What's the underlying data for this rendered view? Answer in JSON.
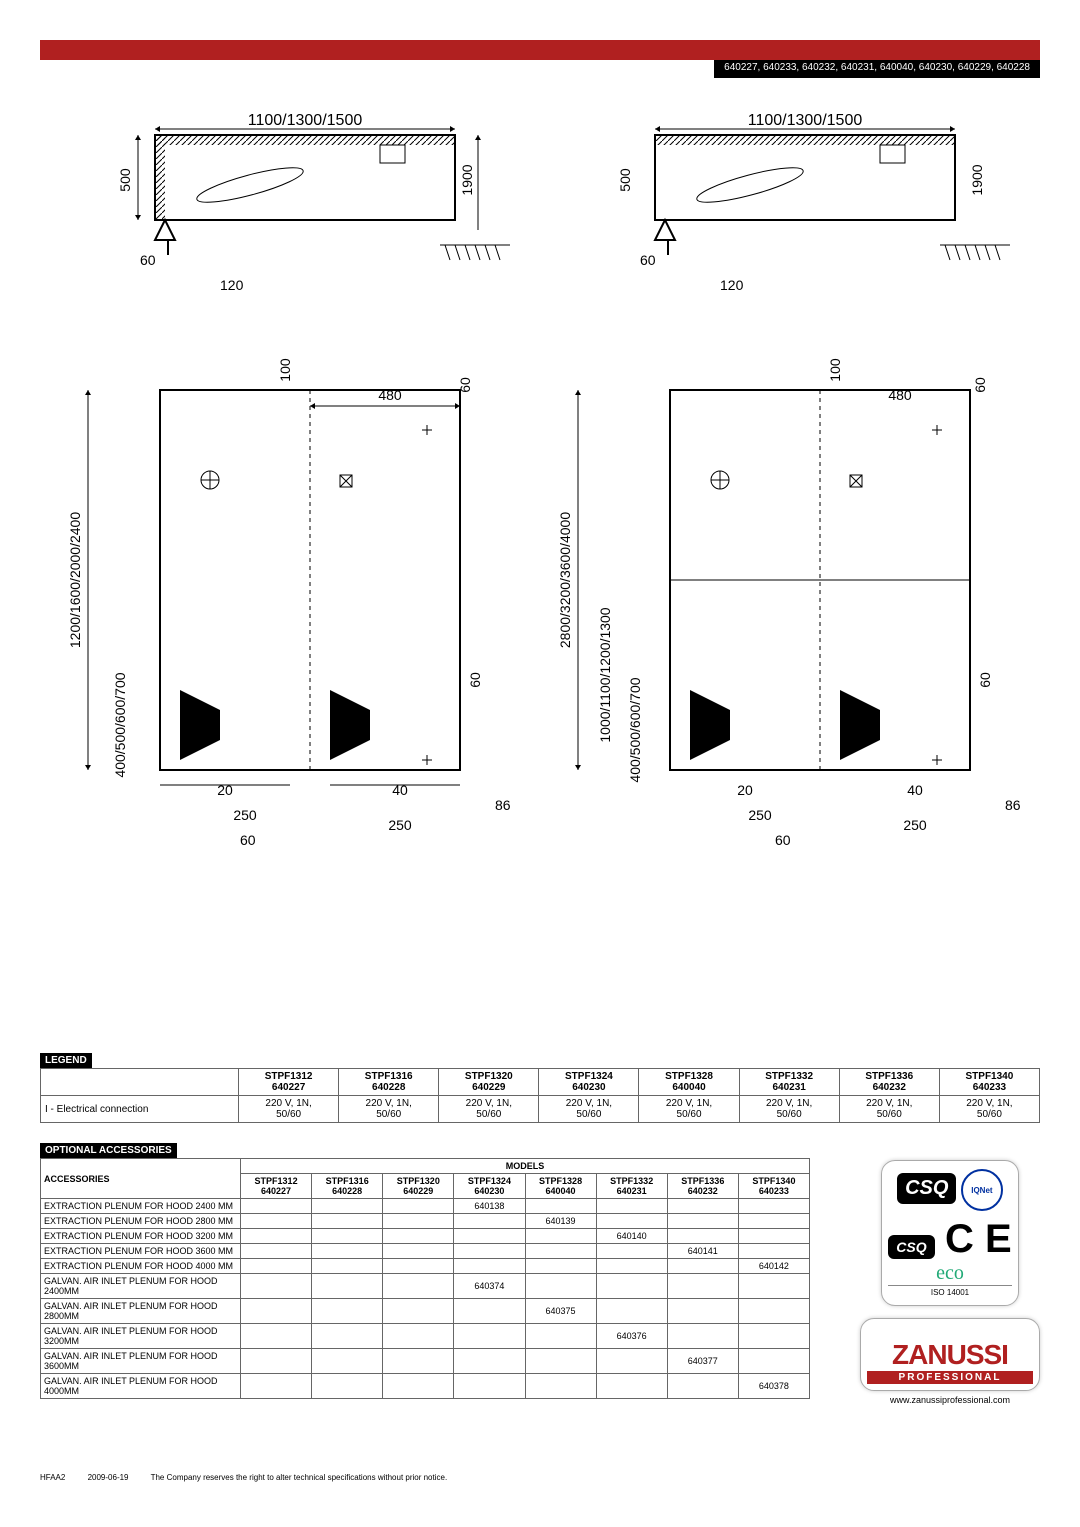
{
  "header_ids": "640227, 640233, 640232, 640231, 640040, 640230, 640229, 640228",
  "diagrams": {
    "top_width_label": "1100/1300/1500",
    "top_height": "500",
    "top_60": "60",
    "top_120": "120",
    "top_1900": "1900",
    "side_long": "1200/1600/2000/2400",
    "side_400": "400/500/600/700",
    "d_100": "100",
    "d_60": "60",
    "d_480": "480",
    "d_20": "20",
    "d_40": "40",
    "d_86": "86",
    "d_250": "250",
    "d_60b": "60",
    "side2_long": "2800/3200/3600/4000",
    "side2_mid": "1000/1100/1200/1300",
    "side2_400": "400/500/600/700",
    "colors": {
      "stroke": "#000000",
      "hatch": "#000000"
    }
  },
  "legend": {
    "title": "LEGEND",
    "models": [
      {
        "name": "STPF1312",
        "code": "640227"
      },
      {
        "name": "STPF1316",
        "code": "640228"
      },
      {
        "name": "STPF1320",
        "code": "640229"
      },
      {
        "name": "STPF1324",
        "code": "640230"
      },
      {
        "name": "STPF1328",
        "code": "640040"
      },
      {
        "name": "STPF1332",
        "code": "640231"
      },
      {
        "name": "STPF1336",
        "code": "640232"
      },
      {
        "name": "STPF1340",
        "code": "640233"
      }
    ],
    "row_label": "I - Electrical connection",
    "row_value": "220 V, 1N, 50/60"
  },
  "accessories": {
    "title": "OPTIONAL ACCESSORIES",
    "col_label": "ACCESSORIES",
    "models_label": "MODELS",
    "rows": [
      {
        "name": "EXTRACTION PLENUM FOR HOOD 2400 MM",
        "vals": [
          "",
          "",
          "",
          "640138",
          "",
          "",
          "",
          ""
        ]
      },
      {
        "name": "EXTRACTION PLENUM FOR HOOD 2800 MM",
        "vals": [
          "",
          "",
          "",
          "",
          "640139",
          "",
          "",
          ""
        ]
      },
      {
        "name": "EXTRACTION PLENUM FOR HOOD 3200 MM",
        "vals": [
          "",
          "",
          "",
          "",
          "",
          "640140",
          "",
          ""
        ]
      },
      {
        "name": "EXTRACTION PLENUM FOR HOOD 3600 MM",
        "vals": [
          "",
          "",
          "",
          "",
          "",
          "",
          "640141",
          ""
        ]
      },
      {
        "name": "EXTRACTION PLENUM FOR HOOD 4000 MM",
        "vals": [
          "",
          "",
          "",
          "",
          "",
          "",
          "",
          "640142"
        ]
      },
      {
        "name": "GALVAN. AIR INLET PLENUM FOR HOOD 2400MM",
        "vals": [
          "",
          "",
          "",
          "640374",
          "",
          "",
          "",
          ""
        ]
      },
      {
        "name": "GALVAN. AIR INLET PLENUM FOR HOOD 2800MM",
        "vals": [
          "",
          "",
          "",
          "",
          "640375",
          "",
          "",
          ""
        ]
      },
      {
        "name": "GALVAN. AIR INLET PLENUM FOR HOOD 3200MM",
        "vals": [
          "",
          "",
          "",
          "",
          "",
          "640376",
          "",
          ""
        ]
      },
      {
        "name": "GALVAN. AIR INLET PLENUM FOR HOOD 3600MM",
        "vals": [
          "",
          "",
          "",
          "",
          "",
          "",
          "640377",
          ""
        ]
      },
      {
        "name": "GALVAN. AIR INLET PLENUM FOR HOOD 4000MM",
        "vals": [
          "",
          "",
          "",
          "",
          "",
          "",
          "",
          "640378"
        ]
      }
    ]
  },
  "certs": {
    "csq": "CSQ",
    "iqnet": "IQNet",
    "ce": "C E",
    "eco": "eco",
    "iso": "ISO 14001"
  },
  "brand": {
    "name": "ZANUSSI",
    "sub": "PROFESSIONAL",
    "url": "www.zanussiprofessional.com"
  },
  "footer": {
    "code": "HFAA2",
    "date": "2009-06-19",
    "note": "The Company reserves the right to alter technical specifications without prior notice."
  }
}
